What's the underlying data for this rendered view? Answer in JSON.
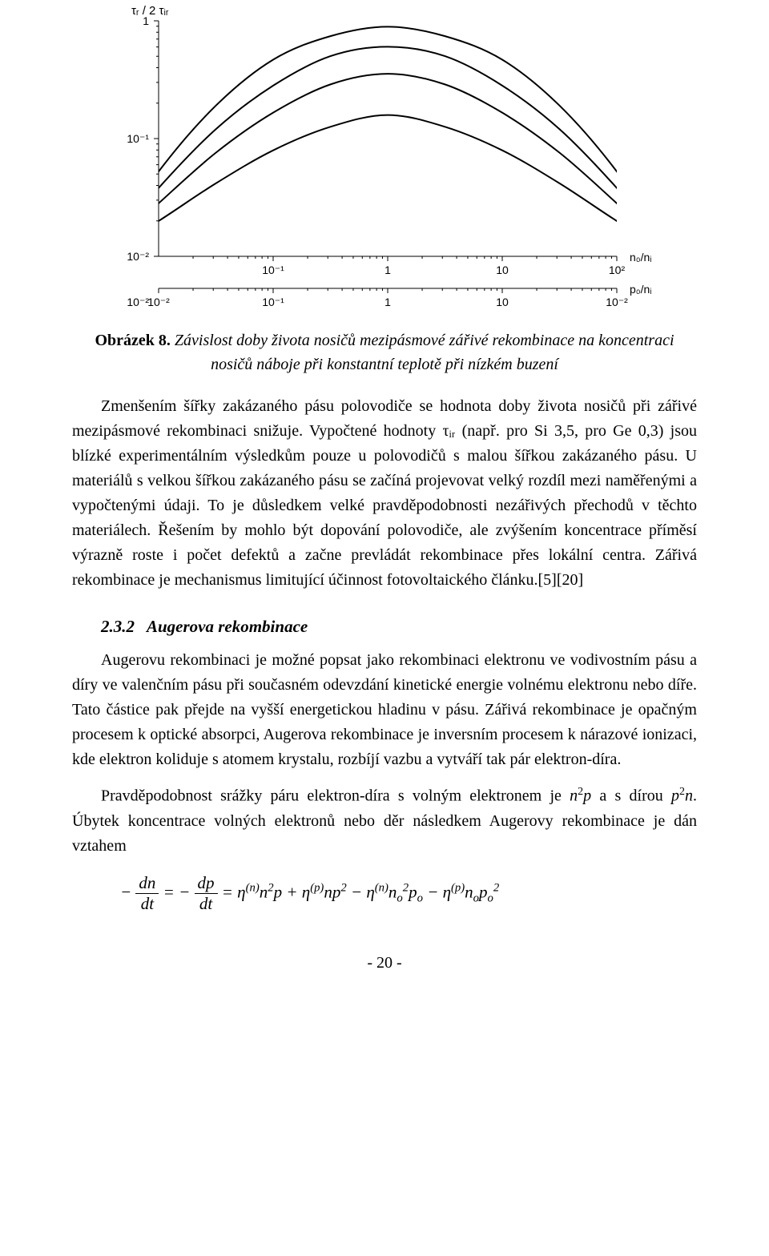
{
  "chart": {
    "type": "line",
    "background_color": "#ffffff",
    "axis_color": "#000000",
    "line_color": "#000000",
    "line_width": 2,
    "y_label": "τᵣ / 2 τᵢᵣ",
    "x1_label": "n₀/nᵢ",
    "x2_label": "p₀/nᵢ",
    "y_ticks": [
      {
        "v": 0,
        "label": "1"
      },
      {
        "v": -1,
        "label": "10⁻¹"
      },
      {
        "v": -2,
        "label": "10⁻²"
      }
    ],
    "x1_ticks": [
      {
        "v": -1,
        "label": "10⁻¹"
      },
      {
        "v": 0,
        "label": "1"
      },
      {
        "v": 1,
        "label": "10"
      },
      {
        "v": 2,
        "label": "10²"
      }
    ],
    "x2_ticks": [
      {
        "v": 2,
        "label": "10⁻²"
      },
      {
        "v": 1,
        "label": "10"
      },
      {
        "v": 0,
        "label": "1"
      },
      {
        "v": -1,
        "label": "10⁻¹"
      },
      {
        "v": -2,
        "label": "10⁻²"
      }
    ],
    "xlim": [
      -2,
      2
    ],
    "ylim": [
      -2,
      0
    ],
    "curves": [
      {
        "points": [
          [
            -2,
            -2
          ],
          [
            -1.5,
            -1.28
          ],
          [
            -1,
            -0.72
          ],
          [
            -0.5,
            -0.33
          ],
          [
            0,
            -0.13
          ],
          [
            0.5,
            -0.05
          ],
          [
            1,
            -0.13
          ],
          [
            1.5,
            -0.33
          ],
          [
            2,
            -0.72
          ],
          [
            2.5,
            -1.28
          ],
          [
            3,
            -2
          ]
        ],
        "shift_x": -0.5
      },
      {
        "points": [
          [
            -2,
            -2
          ],
          [
            -1.5,
            -1.42
          ],
          [
            -1,
            -0.92
          ],
          [
            -0.5,
            -0.55
          ],
          [
            0,
            -0.3
          ],
          [
            0.5,
            -0.22
          ],
          [
            1,
            -0.3
          ],
          [
            1.5,
            -0.55
          ],
          [
            2,
            -0.92
          ],
          [
            2.5,
            -1.42
          ],
          [
            3,
            -2
          ]
        ],
        "shift_x": -0.5
      },
      {
        "points": [
          [
            -2,
            -2
          ],
          [
            -1.5,
            -1.55
          ],
          [
            -1,
            -1.12
          ],
          [
            -0.5,
            -0.78
          ],
          [
            0,
            -0.54
          ],
          [
            0.5,
            -0.45
          ],
          [
            1,
            -0.54
          ],
          [
            1.5,
            -0.78
          ],
          [
            2,
            -1.12
          ],
          [
            2.5,
            -1.55
          ],
          [
            3,
            -2
          ]
        ],
        "shift_x": -0.5
      },
      {
        "points": [
          [
            -2,
            -2
          ],
          [
            -1.5,
            -1.7
          ],
          [
            -1,
            -1.38
          ],
          [
            -0.5,
            -1.1
          ],
          [
            0,
            -0.9
          ],
          [
            0.5,
            -0.8
          ],
          [
            1,
            -0.9
          ],
          [
            1.5,
            -1.1
          ],
          [
            2,
            -1.38
          ],
          [
            2.5,
            -1.7
          ],
          [
            3,
            -2
          ]
        ],
        "shift_x": -0.5
      }
    ]
  },
  "caption_prefix": "Obrázek 8.",
  "caption_text": " Závislost doby života nosičů mezipásmové zářivé rekombinace na koncentraci nosičů náboje při konstantní teplotě při nízkém buzení",
  "para1": "Zmenšením šířky zakázaného pásu polovodiče se hodnota doby života nosičů při zářivé mezipásmové rekombinaci snižuje. Vypočtené hodnoty τᵢᵣ (např. pro Si 3,5, pro Ge 0,3) jsou blízké experimentálním výsledkům pouze u polovodičů s malou šířkou zakázaného pásu. U materiálů s velkou šířkou zakázaného pásu se začíná projevovat velký rozdíl mezi naměřenými a vypočtenými údaji. To je důsledkem velké pravděpodobnosti nezářivých přechodů v těchto materiálech. Řešením by mohlo být dopování polovodiče, ale zvýšením koncentrace příměsí výrazně roste i počet defektů a začne prevládát rekombinace přes lokální centra. Zářivá rekombinace je mechanismus limitující účinnost fotovoltaického článku.[5][20]",
  "section_number": "2.3.2",
  "section_title": "Augerova rekombinace",
  "para2": "Augerovu rekombinaci je možné popsat jako rekombinaci elektronu ve vodivostním pásu a díry ve valenčním pásu při současném odevzdání kinetické energie volnému elektronu nebo díře. Tato částice pak přejde na vyšší energetickou hladinu v pásu. Zářivá rekombinace je opačným procesem k optické absorpci, Augerova rekombinace je inversním procesem k nárazové ionizaci, kde elektron koliduje s atomem krystalu, rozbíjí vazbu a vytváří tak pár elektron-díra.",
  "para3_a": "Pravděpodobnost srážky páru elektron-díra s volným elektronem je ",
  "para3_b": " a s dírou ",
  "para3_c": ". Úbytek koncentrace volných elektronů nebo děr následkem Augerovy rekombinace je dán vztahem",
  "page_number": "- 20 -"
}
